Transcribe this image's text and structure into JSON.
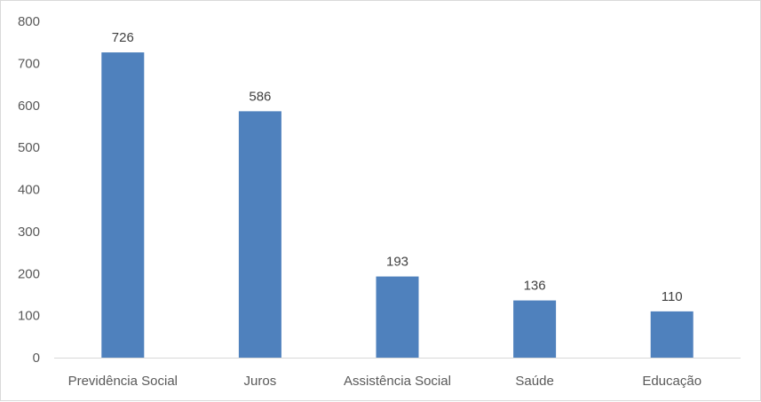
{
  "chart_data": {
    "type": "bar",
    "categories": [
      "Previdência Social",
      "Juros",
      "Assistência Social",
      "Saúde",
      "Educação"
    ],
    "values": [
      726,
      586,
      193,
      136,
      110
    ],
    "data_labels": [
      "726",
      "586",
      "193",
      "136",
      "110"
    ],
    "y_ticks": [
      "0",
      "100",
      "200",
      "300",
      "400",
      "500",
      "600",
      "700",
      "800"
    ],
    "ylim": [
      0,
      800
    ],
    "grid": false,
    "legend": "none",
    "title": "",
    "xlabel": "",
    "ylabel": "",
    "colors": {
      "bar": "#4f81bd",
      "axis": "#d9d9d9"
    }
  }
}
